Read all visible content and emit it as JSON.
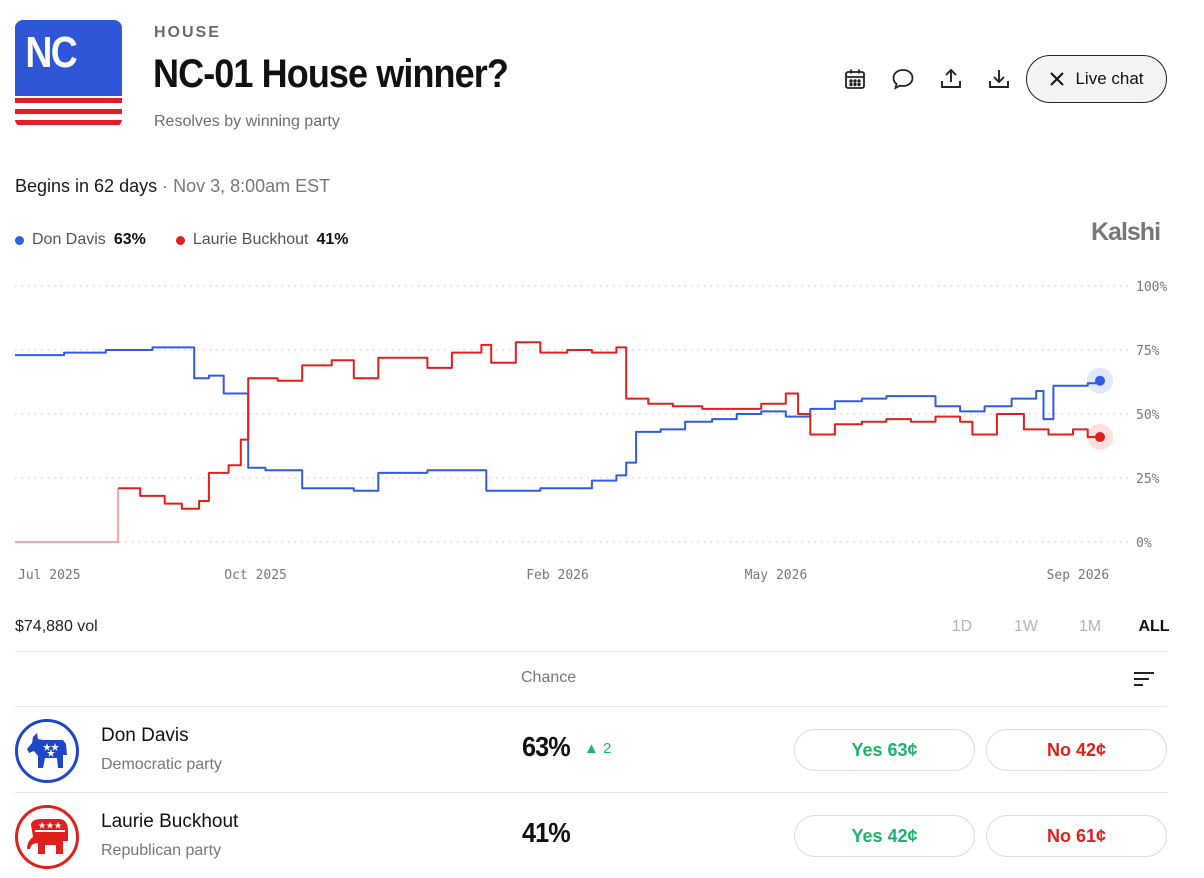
{
  "header": {
    "logo_text": "NC",
    "eyebrow": "HOUSE",
    "title": "NC-01 House winner?",
    "subtitle": "Resolves by winning party",
    "live_chat_label": "Live chat",
    "icons": [
      "calendar-icon",
      "comment-icon",
      "share-icon",
      "download-icon",
      "close-icon"
    ]
  },
  "schedule": {
    "begins": "Begins in 62 days",
    "separator": " · ",
    "date": "Nov 3, 8:00am EST"
  },
  "legend": [
    {
      "name": "Don Davis",
      "value": "63%",
      "color": "#2f5be8"
    },
    {
      "name": "Laurie Buckhout",
      "value": "41%",
      "color": "#e0201c"
    }
  ],
  "brand": "Kalshi",
  "chart_data": {
    "type": "line",
    "x_ticks": [
      "Jul 2025",
      "Oct 2025",
      "Feb 2026",
      "May 2026",
      "Sep 2026"
    ],
    "y_ticks": [
      "100%",
      "75%",
      "50%",
      "25%",
      "0%"
    ],
    "ylim": [
      0,
      100
    ],
    "grid": "dotted horizontal",
    "series": [
      {
        "name": "Don Davis",
        "color": "#2f5be8",
        "points": [
          [
            "2025-06-25",
            73
          ],
          [
            "2025-07-15",
            74
          ],
          [
            "2025-08-01",
            75
          ],
          [
            "2025-08-20",
            76
          ],
          [
            "2025-09-01",
            76
          ],
          [
            "2025-09-06",
            64
          ],
          [
            "2025-09-12",
            65
          ],
          [
            "2025-09-18",
            58
          ],
          [
            "2025-09-25",
            58
          ],
          [
            "2025-09-28",
            29
          ],
          [
            "2025-10-05",
            28
          ],
          [
            "2025-10-15",
            28
          ],
          [
            "2025-10-20",
            21
          ],
          [
            "2025-10-30",
            21
          ],
          [
            "2025-11-10",
            20
          ],
          [
            "2025-11-20",
            27
          ],
          [
            "2025-12-01",
            27
          ],
          [
            "2025-12-10",
            28
          ],
          [
            "2025-12-20",
            28
          ],
          [
            "2026-01-01",
            28
          ],
          [
            "2026-01-03",
            20
          ],
          [
            "2026-01-15",
            20
          ],
          [
            "2026-01-25",
            21
          ],
          [
            "2026-02-05",
            21
          ],
          [
            "2026-02-15",
            24
          ],
          [
            "2026-02-25",
            26
          ],
          [
            "2026-03-01",
            31
          ],
          [
            "2026-03-05",
            43
          ],
          [
            "2026-03-15",
            44
          ],
          [
            "2026-03-25",
            47
          ],
          [
            "2026-04-05",
            48
          ],
          [
            "2026-04-15",
            50
          ],
          [
            "2026-04-25",
            51
          ],
          [
            "2026-05-05",
            49
          ],
          [
            "2026-05-15",
            52
          ],
          [
            "2026-05-25",
            55
          ],
          [
            "2026-06-05",
            56
          ],
          [
            "2026-06-15",
            57
          ],
          [
            "2026-06-25",
            57
          ],
          [
            "2026-07-05",
            53
          ],
          [
            "2026-07-15",
            51
          ],
          [
            "2026-07-25",
            53
          ],
          [
            "2026-08-05",
            56
          ],
          [
            "2026-08-15",
            59
          ],
          [
            "2026-08-18",
            48
          ],
          [
            "2026-08-22",
            61
          ],
          [
            "2026-09-05",
            62
          ],
          [
            "2026-09-10",
            63
          ]
        ]
      },
      {
        "name": "Laurie Buckhout",
        "color": "#e0201c",
        "points": [
          [
            "2025-06-25",
            0
          ],
          [
            "2025-07-10",
            0
          ],
          [
            "2025-08-06",
            0
          ],
          [
            "2025-08-06",
            21
          ],
          [
            "2025-08-15",
            18
          ],
          [
            "2025-08-25",
            15
          ],
          [
            "2025-09-01",
            13
          ],
          [
            "2025-09-08",
            16
          ],
          [
            "2025-09-12",
            27
          ],
          [
            "2025-09-20",
            30
          ],
          [
            "2025-09-25",
            40
          ],
          [
            "2025-09-28",
            64
          ],
          [
            "2025-10-10",
            63
          ],
          [
            "2025-10-20",
            69
          ],
          [
            "2025-11-01",
            71
          ],
          [
            "2025-11-10",
            64
          ],
          [
            "2025-11-20",
            72
          ],
          [
            "2025-12-01",
            72
          ],
          [
            "2025-12-10",
            68
          ],
          [
            "2025-12-20",
            74
          ],
          [
            "2026-01-01",
            77
          ],
          [
            "2026-01-05",
            70
          ],
          [
            "2026-01-15",
            78
          ],
          [
            "2026-01-25",
            74
          ],
          [
            "2026-02-05",
            75
          ],
          [
            "2026-02-15",
            74
          ],
          [
            "2026-02-25",
            76
          ],
          [
            "2026-03-01",
            56
          ],
          [
            "2026-03-10",
            54
          ],
          [
            "2026-03-20",
            53
          ],
          [
            "2026-04-01",
            52
          ],
          [
            "2026-04-15",
            52
          ],
          [
            "2026-04-25",
            54
          ],
          [
            "2026-05-05",
            58
          ],
          [
            "2026-05-10",
            50
          ],
          [
            "2026-05-15",
            42
          ],
          [
            "2026-05-25",
            46
          ],
          [
            "2026-06-05",
            47
          ],
          [
            "2026-06-15",
            48
          ],
          [
            "2026-06-25",
            47
          ],
          [
            "2026-07-05",
            49
          ],
          [
            "2026-07-15",
            47
          ],
          [
            "2026-07-20",
            42
          ],
          [
            "2026-07-30",
            50
          ],
          [
            "2026-08-10",
            44
          ],
          [
            "2026-08-20",
            42
          ],
          [
            "2026-08-30",
            44
          ],
          [
            "2026-09-05",
            41
          ],
          [
            "2026-09-10",
            41
          ]
        ]
      }
    ]
  },
  "volume": "$74,880 vol",
  "ranges": [
    "1D",
    "1W",
    "1M",
    "ALL"
  ],
  "active_range": "ALL",
  "table": {
    "chance_header": "Chance",
    "rows": [
      {
        "name": "Don Davis",
        "party": "Democratic party",
        "chance": "63%",
        "delta": "▲ 2",
        "yes": "Yes 63¢",
        "no": "No 42¢",
        "color": "#1f45c9",
        "icon": "democrat-donkey-icon"
      },
      {
        "name": "Laurie Buckhout",
        "party": "Republican party",
        "chance": "41%",
        "delta": "",
        "yes": "Yes 42¢",
        "no": "No 61¢",
        "color": "#e0201c",
        "icon": "republican-elephant-icon"
      }
    ]
  }
}
